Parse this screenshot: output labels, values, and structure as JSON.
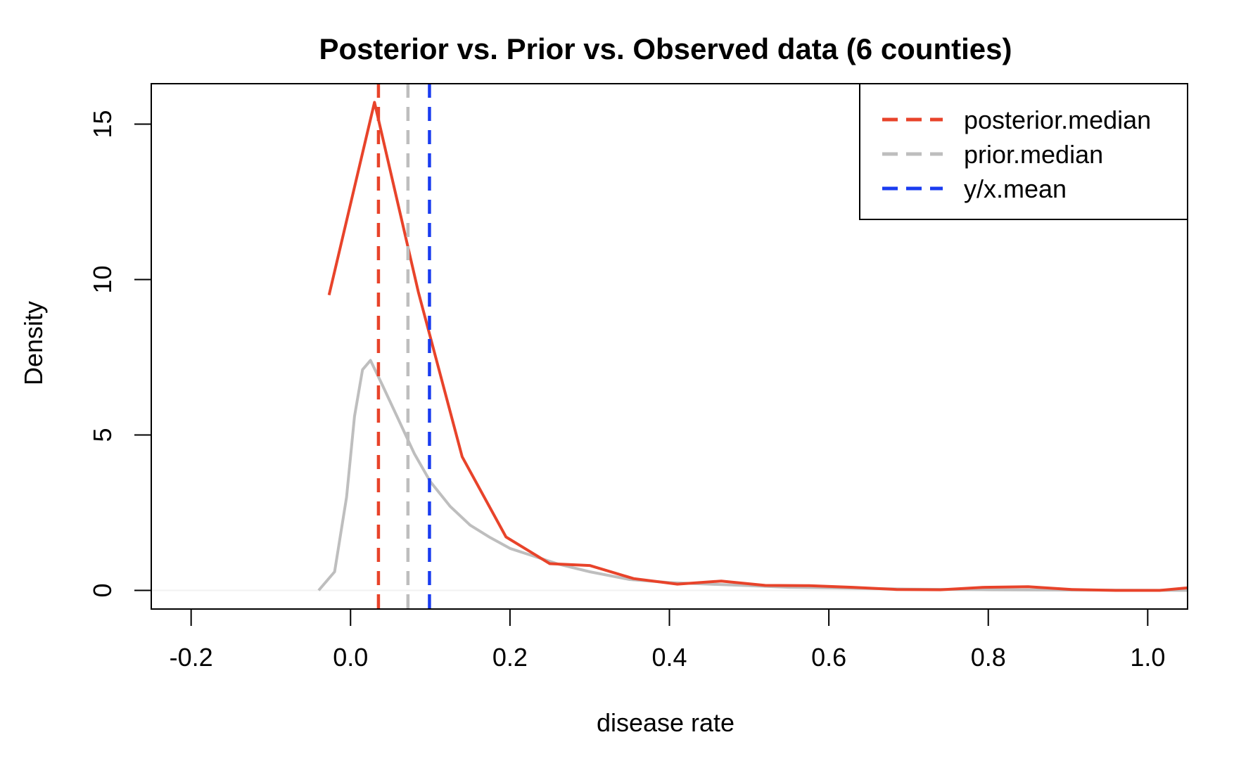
{
  "chart_data": {
    "type": "line",
    "title": "Posterior vs. Prior vs. Observed data (6 counties)",
    "xlabel": "disease rate",
    "ylabel": "Density",
    "xlim": [
      -0.25,
      1.05
    ],
    "ylim": [
      -0.6,
      16.3
    ],
    "x_ticks": [
      -0.2,
      0.0,
      0.2,
      0.4,
      0.6,
      0.8,
      1.0
    ],
    "x_tick_labels": [
      "-0.2",
      "0.0",
      "0.2",
      "0.4",
      "0.6",
      "0.8",
      "1.0"
    ],
    "y_ticks": [
      0,
      5,
      10,
      15
    ],
    "y_tick_labels": [
      "0",
      "5",
      "10",
      "15"
    ],
    "grid": false,
    "legend_position": "top-right",
    "series": [
      {
        "name": "",
        "color": "#e8432a",
        "style": "solid",
        "x": [
          -0.027,
          0.03,
          0.085,
          0.14,
          0.195,
          0.25,
          0.3,
          0.355,
          0.41,
          0.465,
          0.52,
          0.575,
          0.63,
          0.685,
          0.74,
          0.795,
          0.85,
          0.905,
          0.96,
          1.015,
          1.05
        ],
        "y": [
          9.5,
          15.7,
          9.6,
          4.3,
          1.72,
          0.86,
          0.8,
          0.38,
          0.2,
          0.3,
          0.16,
          0.15,
          0.1,
          0.03,
          0.02,
          0.1,
          0.12,
          0.03,
          0.0,
          0.0,
          0.08
        ]
      },
      {
        "name": "",
        "color": "#bebebe",
        "style": "solid",
        "x": [
          -0.04,
          -0.02,
          -0.005,
          0.005,
          0.015,
          0.025,
          0.04,
          0.06,
          0.08,
          0.1,
          0.125,
          0.15,
          0.175,
          0.2,
          0.23,
          0.26,
          0.3,
          0.35,
          0.4,
          0.45,
          0.5,
          0.55,
          0.6,
          0.7,
          0.8,
          0.9,
          1.05
        ],
        "y": [
          0.0,
          0.6,
          3.0,
          5.6,
          7.1,
          7.4,
          6.6,
          5.5,
          4.4,
          3.5,
          2.7,
          2.1,
          1.7,
          1.35,
          1.1,
          0.85,
          0.6,
          0.35,
          0.25,
          0.2,
          0.15,
          0.1,
          0.08,
          0.04,
          0.02,
          0.01,
          0.0
        ]
      }
    ],
    "vlines": [
      {
        "name": "posterior.median",
        "x": 0.035,
        "color": "#e8432a",
        "style": "dashed"
      },
      {
        "name": "prior.median",
        "x": 0.072,
        "color": "#bebebe",
        "style": "dashed"
      },
      {
        "name": "y/x.mean",
        "x": 0.099,
        "color": "#1a3cf0",
        "style": "dashed"
      }
    ],
    "hline": {
      "y": 0,
      "color": "#f2f2f2"
    },
    "legend": [
      {
        "label": "posterior.median",
        "color": "#e8432a"
      },
      {
        "label": "prior.median",
        "color": "#bebebe"
      },
      {
        "label": "y/x.mean",
        "color": "#1a3cf0"
      }
    ]
  }
}
